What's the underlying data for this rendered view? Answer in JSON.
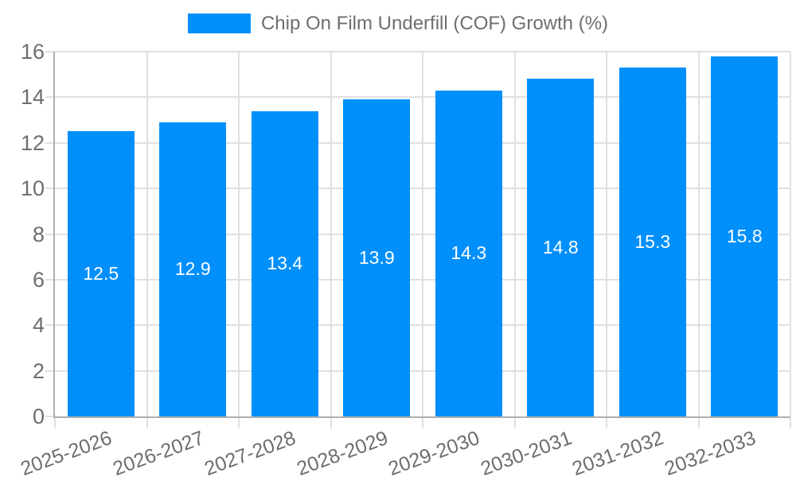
{
  "chart_data": {
    "type": "bar",
    "title": "Chip On Film Underfill (COF) Growth (%)",
    "series_name": "Chip On Film Underfill (COF) Growth (%)",
    "categories": [
      "2025-2026",
      "2026-2027",
      "2027-2028",
      "2028-2029",
      "2029-2030",
      "2030-2031",
      "2031-2032",
      "2032-2033"
    ],
    "values": [
      12.5,
      12.9,
      13.4,
      13.9,
      14.3,
      14.8,
      15.3,
      15.8
    ],
    "value_labels": [
      "12.5",
      "12.9",
      "13.4",
      "13.9",
      "14.3",
      "14.8",
      "15.3",
      "15.8"
    ],
    "xlabel": "",
    "ylabel": "",
    "ylim": [
      0,
      16
    ],
    "yticks": [
      0,
      2,
      4,
      6,
      8,
      10,
      12,
      14,
      16
    ],
    "grid": true,
    "legend_position": "top",
    "colors": {
      "bar": "#008FFB",
      "grid": "#E0E0E0",
      "axis_border": "#AFAFAF",
      "tick_label_text": "#6E6E6E",
      "legend_text": "#6E6E6E",
      "value_label_text": "#FFFFFF"
    }
  }
}
